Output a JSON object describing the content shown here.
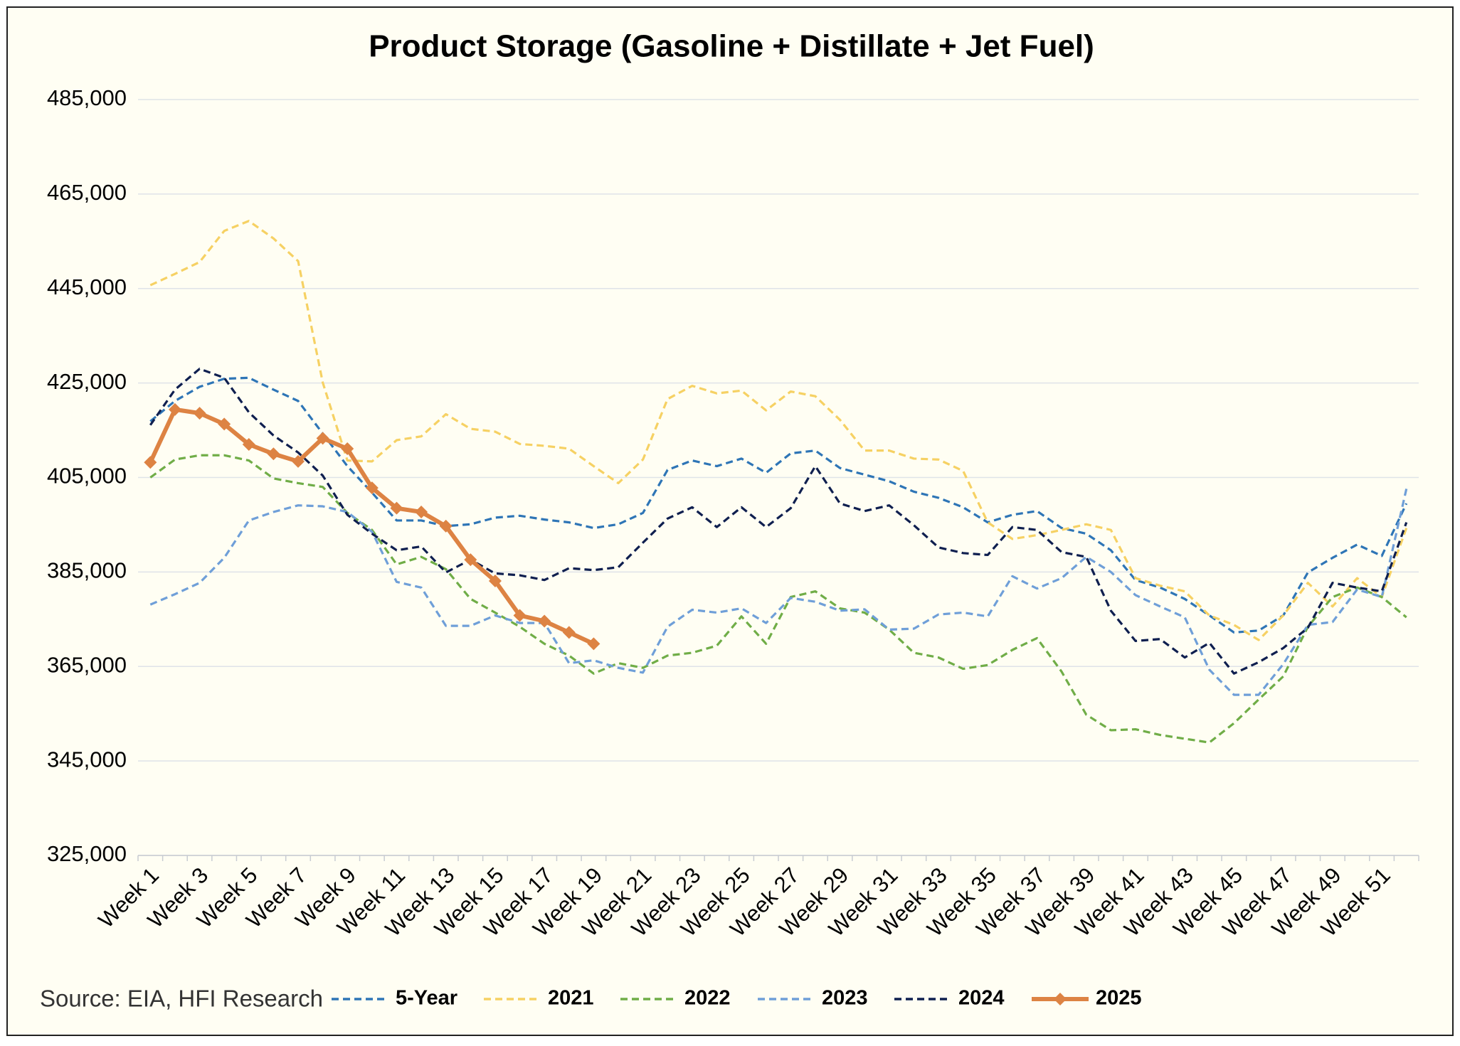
{
  "chart_data": {
    "type": "line",
    "title": "Product Storage (Gasoline + Distillate + Jet Fuel)",
    "source": "Source: EIA, HFI Research",
    "categories": [
      "Week 1",
      null,
      "Week 3",
      null,
      "Week 5",
      null,
      "Week 7",
      null,
      "Week 9",
      null,
      "Week 11",
      null,
      "Week 13",
      null,
      "Week 15",
      null,
      "Week 17",
      null,
      "Week 19",
      null,
      "Week 21",
      null,
      "Week 23",
      null,
      "Week 25",
      null,
      "Week 27",
      null,
      "Week 29",
      null,
      "Week 31",
      null,
      "Week 33",
      null,
      "Week 35",
      null,
      "Week 37",
      null,
      "Week 39",
      null,
      "Week 41",
      null,
      "Week 43",
      null,
      "Week 45",
      null,
      "Week 47",
      null,
      "Week 49",
      null,
      "Week 51",
      null
    ],
    "ylim": [
      325000,
      485000
    ],
    "yticks": [
      {
        "value": 325000,
        "label": "325,000"
      },
      {
        "value": 345000,
        "label": "345,000"
      },
      {
        "value": 365000,
        "label": "365,000"
      },
      {
        "value": 385000,
        "label": "385,000"
      },
      {
        "value": 405000,
        "label": "405,000"
      },
      {
        "value": 425000,
        "label": "425,000"
      },
      {
        "value": 445000,
        "label": "445,000"
      },
      {
        "value": 465000,
        "label": "465,000"
      },
      {
        "value": 485000,
        "label": "485,000"
      }
    ],
    "grid": true,
    "series": [
      {
        "name": "5-Year",
        "color": "#2e75b6",
        "dashed": true,
        "values": [
          416900,
          421200,
          424200,
          425900,
          426100,
          423600,
          421200,
          414300,
          407400,
          401800,
          395900,
          395900,
          394700,
          395100,
          396500,
          396900,
          396100,
          395500,
          394300,
          395100,
          397500,
          406600,
          408600,
          407400,
          409000,
          406000,
          410100,
          410700,
          407000,
          405600,
          404200,
          402000,
          400700,
          398700,
          395500,
          397100,
          397900,
          394300,
          393100,
          389600,
          383300,
          381700,
          379300,
          375800,
          372200,
          372600,
          375800,
          384900,
          388000,
          390800,
          388400,
          399500
        ]
      },
      {
        "name": "2021",
        "color": "#f6d163",
        "dashed": true,
        "values": [
          445700,
          448100,
          450600,
          457200,
          459300,
          455600,
          450800,
          425100,
          408600,
          408400,
          412900,
          413700,
          418400,
          415300,
          414700,
          412100,
          411700,
          411100,
          407400,
          403800,
          408800,
          421600,
          424400,
          422800,
          423400,
          419200,
          423200,
          422200,
          417200,
          410700,
          410700,
          409000,
          408800,
          406400,
          395500,
          392000,
          392800,
          393900,
          395100,
          393900,
          383700,
          382100,
          380900,
          375800,
          373800,
          370600,
          375800,
          382700,
          377700,
          383700,
          379700,
          394300
        ]
      },
      {
        "name": "2022",
        "color": "#70ad47",
        "dashed": true,
        "values": [
          405000,
          408800,
          409700,
          409700,
          408600,
          404800,
          403800,
          403000,
          397500,
          393900,
          386600,
          388200,
          385600,
          379300,
          376400,
          373400,
          369800,
          367300,
          363500,
          365700,
          364700,
          367300,
          367900,
          369400,
          375600,
          369800,
          379700,
          380900,
          377300,
          376400,
          372800,
          367900,
          366900,
          364500,
          365300,
          368500,
          371000,
          363900,
          354800,
          351500,
          351700,
          350500,
          349700,
          348900,
          353000,
          358000,
          362900,
          373400,
          379700,
          381700,
          379700,
          375400
        ]
      },
      {
        "name": "2023",
        "color": "#6f9fd8",
        "dashed": true,
        "values": [
          378100,
          380300,
          382700,
          388000,
          395900,
          397700,
          399100,
          398900,
          397700,
          393500,
          382900,
          381700,
          373600,
          373600,
          375800,
          374200,
          374200,
          365700,
          366300,
          364700,
          363700,
          373400,
          377000,
          376400,
          377300,
          374200,
          379500,
          378700,
          376800,
          377100,
          372800,
          373000,
          376000,
          376400,
          375600,
          384100,
          381500,
          383700,
          388200,
          385000,
          380100,
          377700,
          375400,
          364300,
          359000,
          359000,
          365500,
          373800,
          374400,
          381300,
          379700,
          402600
        ]
      },
      {
        "name": "2024",
        "color": "#0f1f4f",
        "dashed": true,
        "values": [
          416100,
          423600,
          428000,
          426100,
          418800,
          413900,
          410300,
          405400,
          397100,
          393100,
          389600,
          390400,
          384900,
          387600,
          384700,
          384300,
          383300,
          385800,
          385400,
          386000,
          391200,
          396300,
          398700,
          394500,
          398700,
          394500,
          398500,
          407400,
          399500,
          397900,
          399100,
          394900,
          390200,
          389000,
          388600,
          394500,
          393900,
          389200,
          388200,
          376800,
          370400,
          370800,
          366900,
          370000,
          363500,
          365900,
          368900,
          373200,
          382700,
          381700,
          380900,
          395500
        ]
      },
      {
        "name": "2025",
        "color": "#dd8343",
        "dashed": false,
        "marker": "diamond",
        "values": [
          408200,
          419400,
          418600,
          416300,
          412000,
          410000,
          408400,
          413300,
          411100,
          402800,
          398500,
          397700,
          394700,
          387600,
          383100,
          375800,
          374600,
          372200,
          369800,
          null,
          null,
          null,
          null,
          null,
          null,
          null,
          null,
          null,
          null,
          null,
          null,
          null,
          null,
          null,
          null,
          null,
          null,
          null,
          null,
          null,
          null,
          null,
          null,
          null,
          null,
          null,
          null,
          null,
          null,
          null,
          null,
          null
        ]
      }
    ]
  }
}
